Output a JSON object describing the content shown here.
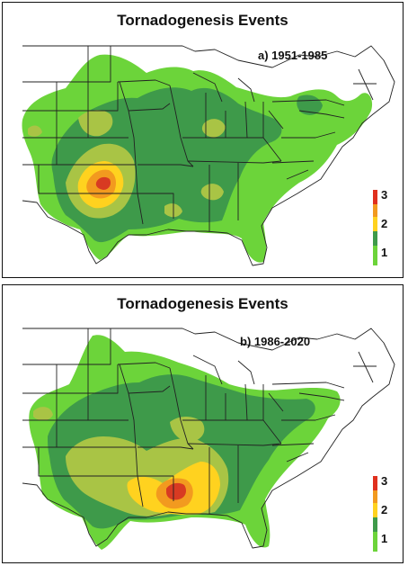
{
  "panels": [
    {
      "title": "Tornadogenesis Events",
      "subtitle": "a) 1951-1985"
    },
    {
      "title": "Tornadogenesis Events",
      "subtitle": "b) 1986-2020"
    }
  ],
  "legend": {
    "ticks": [
      "3",
      "2",
      "1"
    ],
    "scale": [
      {
        "level": 1,
        "color": "#66dd33"
      },
      {
        "level": 1.5,
        "color": "#33a043"
      },
      {
        "level": 2,
        "color": "#aacc44"
      },
      {
        "level": 2.5,
        "color": "#ffd21f"
      },
      {
        "level": 3,
        "color": "#e0301e"
      }
    ]
  },
  "colors": {
    "low": "#6cd43a",
    "mid": "#3e9a4a",
    "olive": "#a9c445",
    "yellow": "#ffd21f",
    "orange": "#f29a1f",
    "red": "#d83a22"
  }
}
